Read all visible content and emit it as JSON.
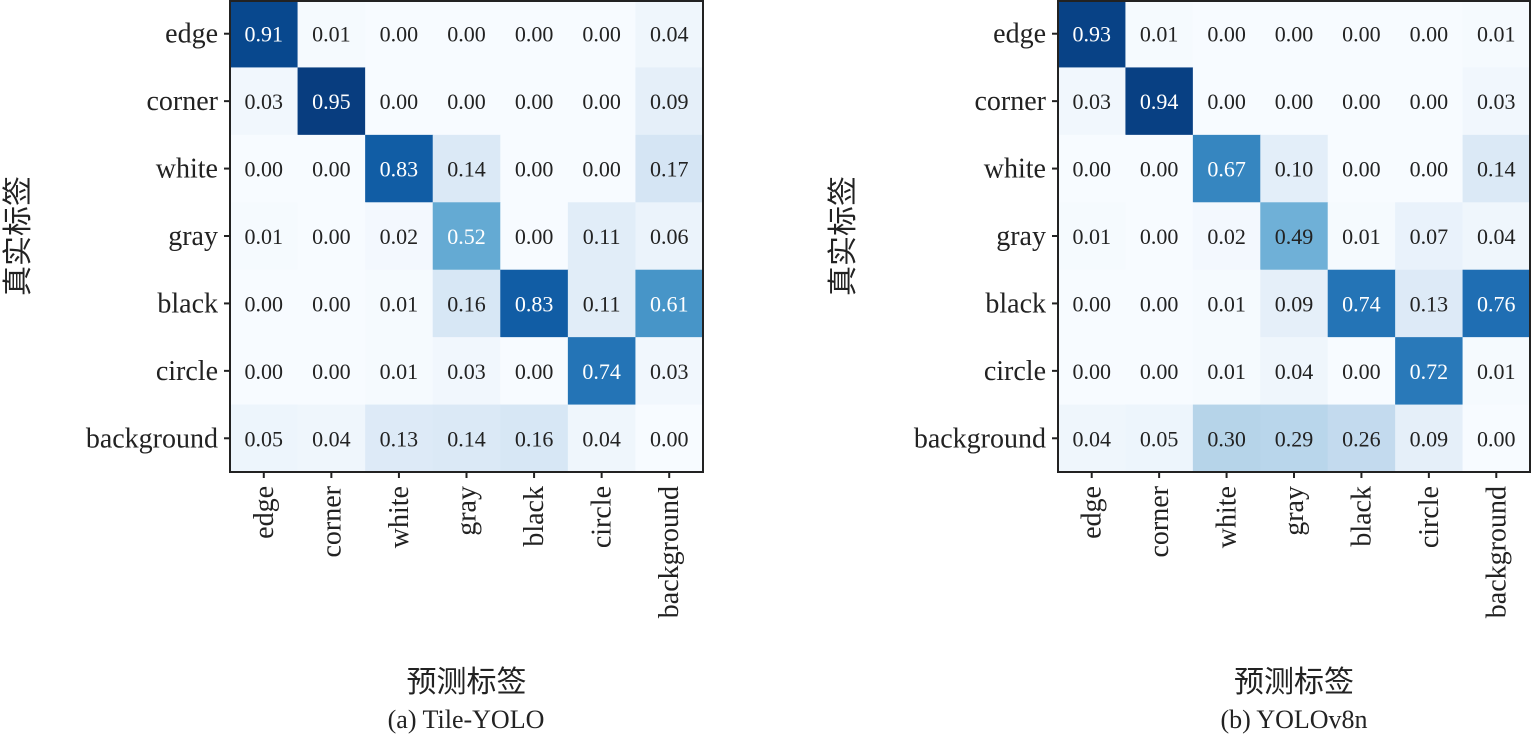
{
  "chart_data": [
    {
      "type": "heatmap",
      "title": "",
      "caption": "(a) Tile-YOLO",
      "xlabel": "预测标签",
      "ylabel": "真实标签",
      "x_categories": [
        "edge",
        "corner",
        "white",
        "gray",
        "black",
        "circle",
        "background"
      ],
      "y_categories": [
        "edge",
        "corner",
        "white",
        "gray",
        "black",
        "circle",
        "background"
      ],
      "values": [
        [
          0.91,
          0.01,
          0.0,
          0.0,
          0.0,
          0.0,
          0.04
        ],
        [
          0.03,
          0.95,
          0.0,
          0.0,
          0.0,
          0.0,
          0.09
        ],
        [
          0.0,
          0.0,
          0.83,
          0.14,
          0.0,
          0.0,
          0.17
        ],
        [
          0.01,
          0.0,
          0.02,
          0.52,
          0.0,
          0.11,
          0.06
        ],
        [
          0.0,
          0.0,
          0.01,
          0.16,
          0.83,
          0.11,
          0.61
        ],
        [
          0.0,
          0.0,
          0.01,
          0.03,
          0.0,
          0.74,
          0.03
        ],
        [
          0.05,
          0.04,
          0.13,
          0.14,
          0.16,
          0.04,
          0.0
        ]
      ],
      "colormap": "Blues",
      "colormap_range": [
        0,
        1
      ]
    },
    {
      "type": "heatmap",
      "title": "",
      "caption": "(b) YOLOv8n",
      "xlabel": "预测标签",
      "ylabel": "真实标签",
      "x_categories": [
        "edge",
        "corner",
        "white",
        "gray",
        "black",
        "circle",
        "background"
      ],
      "y_categories": [
        "edge",
        "corner",
        "white",
        "gray",
        "black",
        "circle",
        "background"
      ],
      "values": [
        [
          0.93,
          0.01,
          0.0,
          0.0,
          0.0,
          0.0,
          0.01
        ],
        [
          0.03,
          0.94,
          0.0,
          0.0,
          0.0,
          0.0,
          0.03
        ],
        [
          0.0,
          0.0,
          0.67,
          0.1,
          0.0,
          0.0,
          0.14
        ],
        [
          0.01,
          0.0,
          0.02,
          0.49,
          0.01,
          0.07,
          0.04
        ],
        [
          0.0,
          0.0,
          0.01,
          0.09,
          0.74,
          0.13,
          0.76
        ],
        [
          0.0,
          0.0,
          0.01,
          0.04,
          0.0,
          0.72,
          0.01
        ],
        [
          0.04,
          0.05,
          0.3,
          0.29,
          0.26,
          0.09,
          0.0
        ]
      ],
      "colormap": "Blues",
      "colormap_range": [
        0,
        1
      ]
    }
  ]
}
